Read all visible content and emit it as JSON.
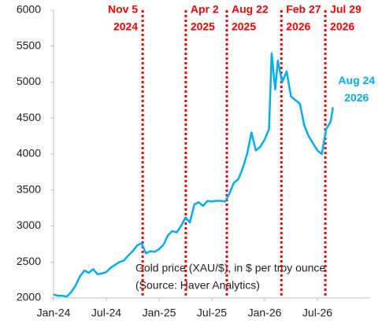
{
  "chart_data": {
    "type": "line",
    "color": "#00b0f0",
    "x": [
      0,
      0.5,
      1,
      1.5,
      2,
      2.5,
      3,
      3.5,
      4,
      4.5,
      5,
      5.5,
      6,
      6.5,
      7,
      7.5,
      8,
      8.5,
      9,
      9.5,
      10,
      10.5,
      11,
      11.5,
      12,
      12.5,
      13,
      13.5,
      14,
      14.5,
      15,
      15.5,
      16,
      16.5,
      17,
      17.5,
      18,
      18.5,
      19,
      19.5,
      20,
      20.5,
      21,
      21.5,
      22,
      22.5,
      23,
      23.5,
      24,
      24.5,
      24.8,
      25.2,
      25.5,
      26,
      26.5,
      27,
      27.5,
      28,
      28.5,
      29,
      29.5,
      30,
      30.5,
      31,
      31.5,
      31.77
    ],
    "values": [
      2050,
      2030,
      2030,
      2020,
      2080,
      2170,
      2300,
      2380,
      2350,
      2400,
      2330,
      2340,
      2360,
      2420,
      2460,
      2500,
      2520,
      2590,
      2650,
      2730,
      2760,
      2620,
      2650,
      2640,
      2680,
      2740,
      2870,
      2930,
      2910,
      3000,
      3120,
      3050,
      3300,
      3330,
      3280,
      3350,
      3340,
      3350,
      3350,
      3340,
      3450,
      3600,
      3650,
      3800,
      4000,
      4300,
      4050,
      4100,
      4200,
      4350,
      5400,
      4900,
      5300,
      5000,
      5150,
      4800,
      4750,
      4700,
      4400,
      4250,
      4150,
      4050,
      4000,
      4350,
      4450,
      4650
    ],
    "xlim": [
      0,
      36
    ],
    "xticks": [
      {
        "value": 0,
        "label": "Jan-24"
      },
      {
        "value": 6,
        "label": "Jul-24"
      },
      {
        "value": 12,
        "label": "Jan-25"
      },
      {
        "value": 18,
        "label": "Jul-25"
      },
      {
        "value": 24,
        "label": "Jan-26"
      },
      {
        "value": 30,
        "label": "Jul-26"
      }
    ],
    "ylim": [
      2000,
      6000
    ],
    "yticks": [
      2000,
      2500,
      3000,
      3500,
      4000,
      4500,
      5000,
      5500,
      6000
    ],
    "events": [
      {
        "x": 10.13,
        "label": [
          "Nov 5",
          "2024"
        ]
      },
      {
        "x": 15.03,
        "label": [
          "Apr 2",
          "2025"
        ]
      },
      {
        "x": 19.7,
        "label": [
          "Aug 22",
          "2025"
        ]
      },
      {
        "x": 25.9,
        "label": [
          "Feb 27",
          "2026"
        ]
      },
      {
        "x": 30.9,
        "label": [
          "Jul 29",
          "2026"
        ]
      }
    ],
    "event_color": "#ff0000",
    "end_label": [
      "Aug 24",
      "2026"
    ],
    "note": [
      "Gold price (XAU/$), in $ per troy ounce",
      "(Source: Haver Analytics)"
    ]
  }
}
